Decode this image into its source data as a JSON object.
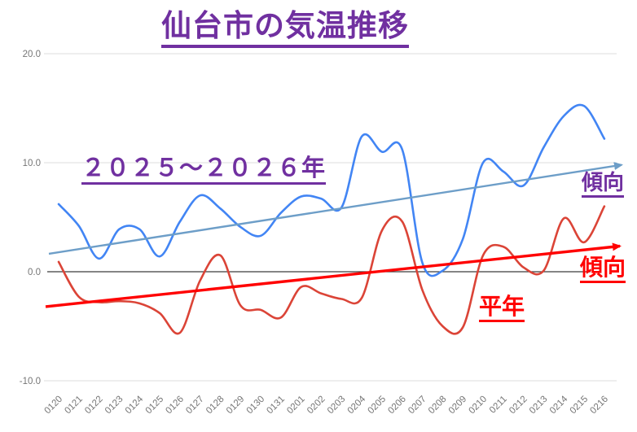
{
  "title": {
    "text": "仙台市の気温推移",
    "color": "#7030A0"
  },
  "annotations": {
    "series_blue_label": "２０２５～２０２６年",
    "trend_blue_label": "傾向",
    "series_red_label": "平年",
    "trend_red_label": "傾向"
  },
  "chart_data": {
    "type": "line",
    "title": "仙台市の気温推移",
    "xlabel": "",
    "ylabel": "",
    "ylim": [
      -10,
      20
    ],
    "grid": true,
    "legend_position": "none",
    "yticks": [
      {
        "label": "20.0",
        "value": 20
      },
      {
        "label": "10.0",
        "value": 10
      },
      {
        "label": "0.0",
        "value": 0
      },
      {
        "label": "-10.0",
        "value": -10
      }
    ],
    "categories": [
      "0120",
      "0121",
      "0122",
      "0123",
      "0124",
      "0125",
      "0126",
      "0127",
      "0128",
      "0129",
      "0130",
      "0131",
      "0201",
      "0202",
      "0203",
      "0204",
      "0205",
      "0206",
      "0207",
      "0208",
      "0209",
      "0210",
      "0211",
      "0212",
      "0213",
      "0214",
      "0215",
      "0216"
    ],
    "series": [
      {
        "name": "２０２５～２０２６年",
        "color": "#4285F4",
        "smooth": true,
        "values": [
          6.2,
          4.2,
          1.2,
          3.9,
          3.9,
          1.4,
          4.6,
          7.0,
          5.8,
          4.1,
          3.3,
          5.4,
          6.9,
          6.7,
          5.9,
          12.4,
          11.0,
          11.2,
          0.8,
          0.1,
          3.0,
          10.0,
          9.2,
          7.9,
          11.4,
          14.3,
          15.2,
          12.2
        ]
      },
      {
        "name": "平年",
        "color": "#DB4437",
        "smooth": true,
        "values": [
          0.9,
          -2.3,
          -2.8,
          -2.7,
          -2.9,
          -3.8,
          -5.6,
          -0.8,
          1.5,
          -3.1,
          -3.5,
          -4.2,
          -1.4,
          -2.0,
          -2.5,
          -2.4,
          3.8,
          4.6,
          -1.7,
          -5.0,
          -5.1,
          1.5,
          2.3,
          0.4,
          0.1,
          4.9,
          2.7,
          6.0
        ]
      }
    ],
    "trendlines": [
      {
        "for": "２０２５～２０２６年",
        "label": "傾向",
        "color": "#6D9EC8",
        "value_start": 1.65,
        "value_end": 9.8
      },
      {
        "for": "平年",
        "label": "傾向",
        "color": "#FF0000",
        "value_start": -3.2,
        "value_end": 2.35
      }
    ]
  }
}
